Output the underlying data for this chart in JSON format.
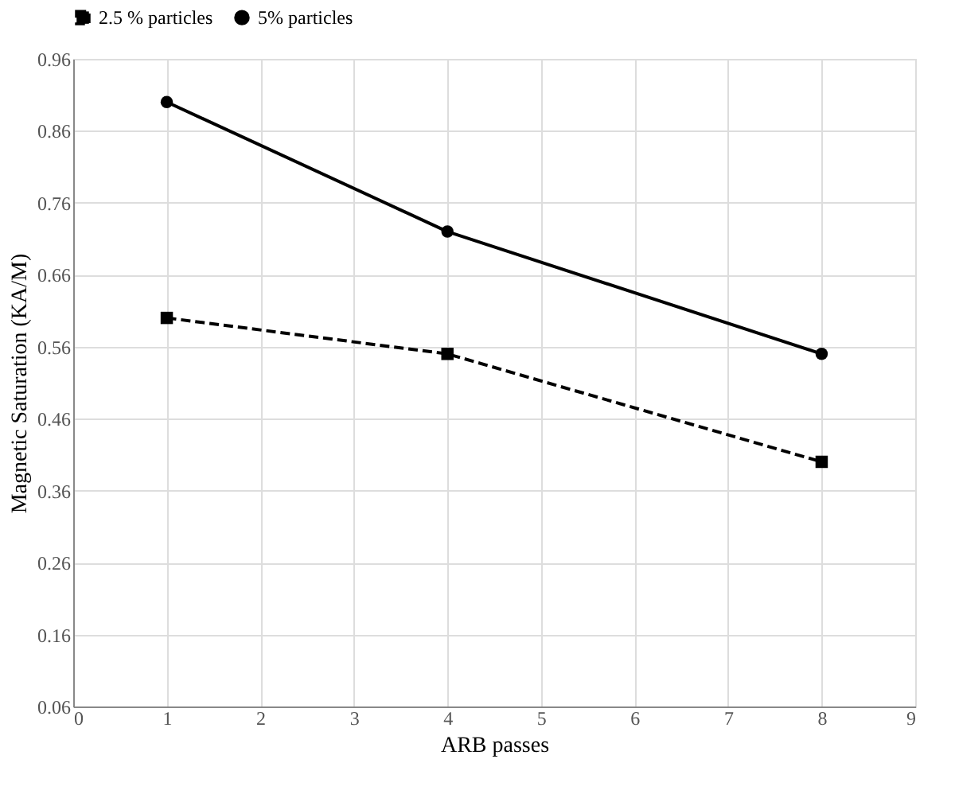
{
  "chart_data": {
    "type": "line",
    "xlabel": "ARB passes",
    "ylabel": "Magnetic Saturation (KA/M)",
    "x": [
      1,
      4,
      8
    ],
    "series": [
      {
        "name": "2.5 % particles",
        "color": "#000000",
        "values": [
          0.6,
          0.55,
          0.4
        ],
        "marker": "square",
        "line_style": "dashed"
      },
      {
        "name": "5% particles",
        "color": "#000000",
        "values": [
          0.9,
          0.72,
          0.55
        ],
        "marker": "circle",
        "line_style": "solid"
      }
    ],
    "xlim": [
      0,
      9
    ],
    "xticks": [
      0,
      1,
      2,
      3,
      4,
      5,
      6,
      7,
      8,
      9
    ],
    "ylim": [
      0.06,
      0.96
    ],
    "yticks": [
      0.06,
      0.16,
      0.26,
      0.36,
      0.46,
      0.56,
      0.66,
      0.76,
      0.86,
      0.96
    ],
    "grid": true,
    "legend": "top"
  }
}
